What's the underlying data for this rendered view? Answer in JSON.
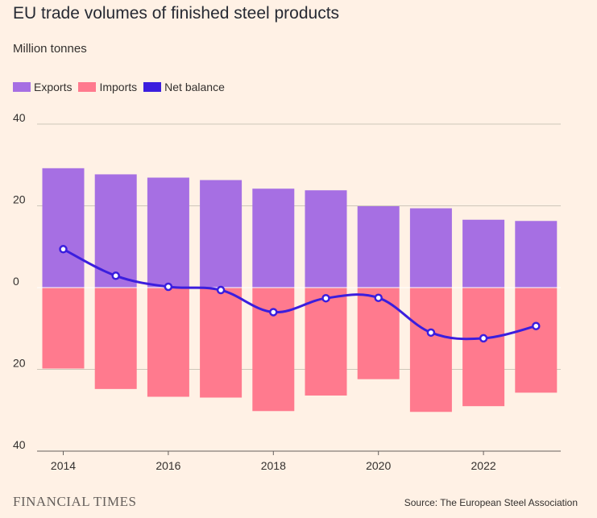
{
  "chart_data": {
    "type": "bar",
    "title": "EU trade volumes of finished steel products",
    "subtitle": "Million tonnes",
    "x": [
      2014,
      2015,
      2016,
      2017,
      2018,
      2019,
      2020,
      2021,
      2022,
      2023
    ],
    "x_ticks": [
      "2014",
      "2016",
      "2018",
      "2020",
      "2022"
    ],
    "y_ticks": [
      "40",
      "20",
      "0",
      "20",
      "40"
    ],
    "ylim": [
      -40,
      40
    ],
    "grid": true,
    "legend_position": "top-left",
    "series": [
      {
        "name": "Exports",
        "kind": "bar",
        "color": "#A66FE3",
        "values": [
          29.2,
          27.7,
          26.9,
          26.3,
          24.2,
          23.8,
          19.9,
          19.4,
          16.6,
          16.3
        ]
      },
      {
        "name": "Imports",
        "kind": "bar",
        "color": "#FF7A8E",
        "values": [
          -19.8,
          -24.8,
          -26.7,
          -26.9,
          -30.2,
          -26.4,
          -22.4,
          -30.4,
          -29.0,
          -25.7
        ]
      },
      {
        "name": "Net balance",
        "kind": "line",
        "color": "#3B1EDE",
        "values": [
          9.4,
          2.9,
          0.2,
          -0.6,
          -6.0,
          -2.6,
          -2.5,
          -11.0,
          -12.4,
          -9.4
        ]
      }
    ]
  },
  "footer": {
    "brand": "FINANCIAL TIMES",
    "source": "Source: The European Steel Association"
  }
}
